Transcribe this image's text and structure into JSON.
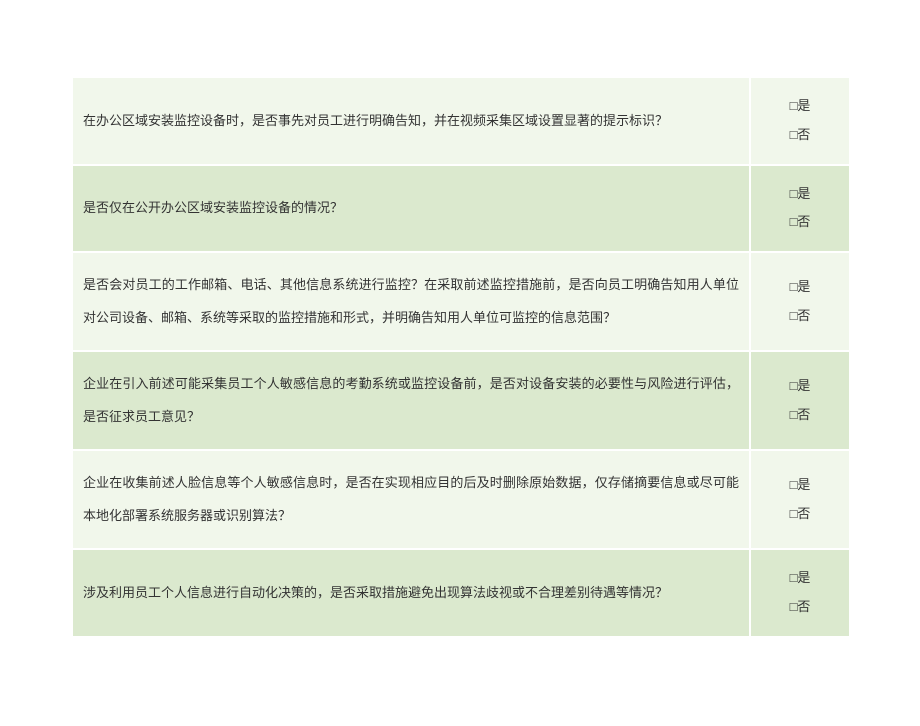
{
  "table": {
    "rows": [
      {
        "question": "在办公区域安装监控设备时，是否事先对员工进行明确告知，并在视频采集区域设置显著的提示标识？",
        "yes": "□是",
        "no": "□否",
        "shade": "light"
      },
      {
        "question": "是否仅在公开办公区域安装监控设备的情况？",
        "yes": "□是",
        "no": "□否",
        "shade": "dark"
      },
      {
        "question": "是否会对员工的工作邮箱、电话、其他信息系统进行监控？在采取前述监控措施前，是否向员工明确告知用人单位对公司设备、邮箱、系统等采取的监控措施和形式，并明确告知用人单位可监控的信息范围？",
        "yes": "□是",
        "no": "□否",
        "shade": "light"
      },
      {
        "question": "企业在引入前述可能采集员工个人敏感信息的考勤系统或监控设备前，是否对设备安装的必要性与风险进行评估，是否征求员工意见？",
        "yes": "□是",
        "no": "□否",
        "shade": "dark"
      },
      {
        "question": "企业在收集前述人脸信息等个人敏感信息时，是否在实现相应目的后及时删除原始数据，仅存储摘要信息或尽可能本地化部署系统服务器或识别算法？",
        "yes": "□是",
        "no": "□否",
        "shade": "light"
      },
      {
        "question": "涉及利用员工个人信息进行自动化决策的，是否采取措施避免出现算法歧视或不合理差别待遇等情况？",
        "yes": "□是",
        "no": "□否",
        "shade": "dark"
      }
    ],
    "colors": {
      "light_bg": "#f1f7eb",
      "dark_bg": "#dbe9ce",
      "border": "#ffffff",
      "text": "#333333"
    }
  }
}
